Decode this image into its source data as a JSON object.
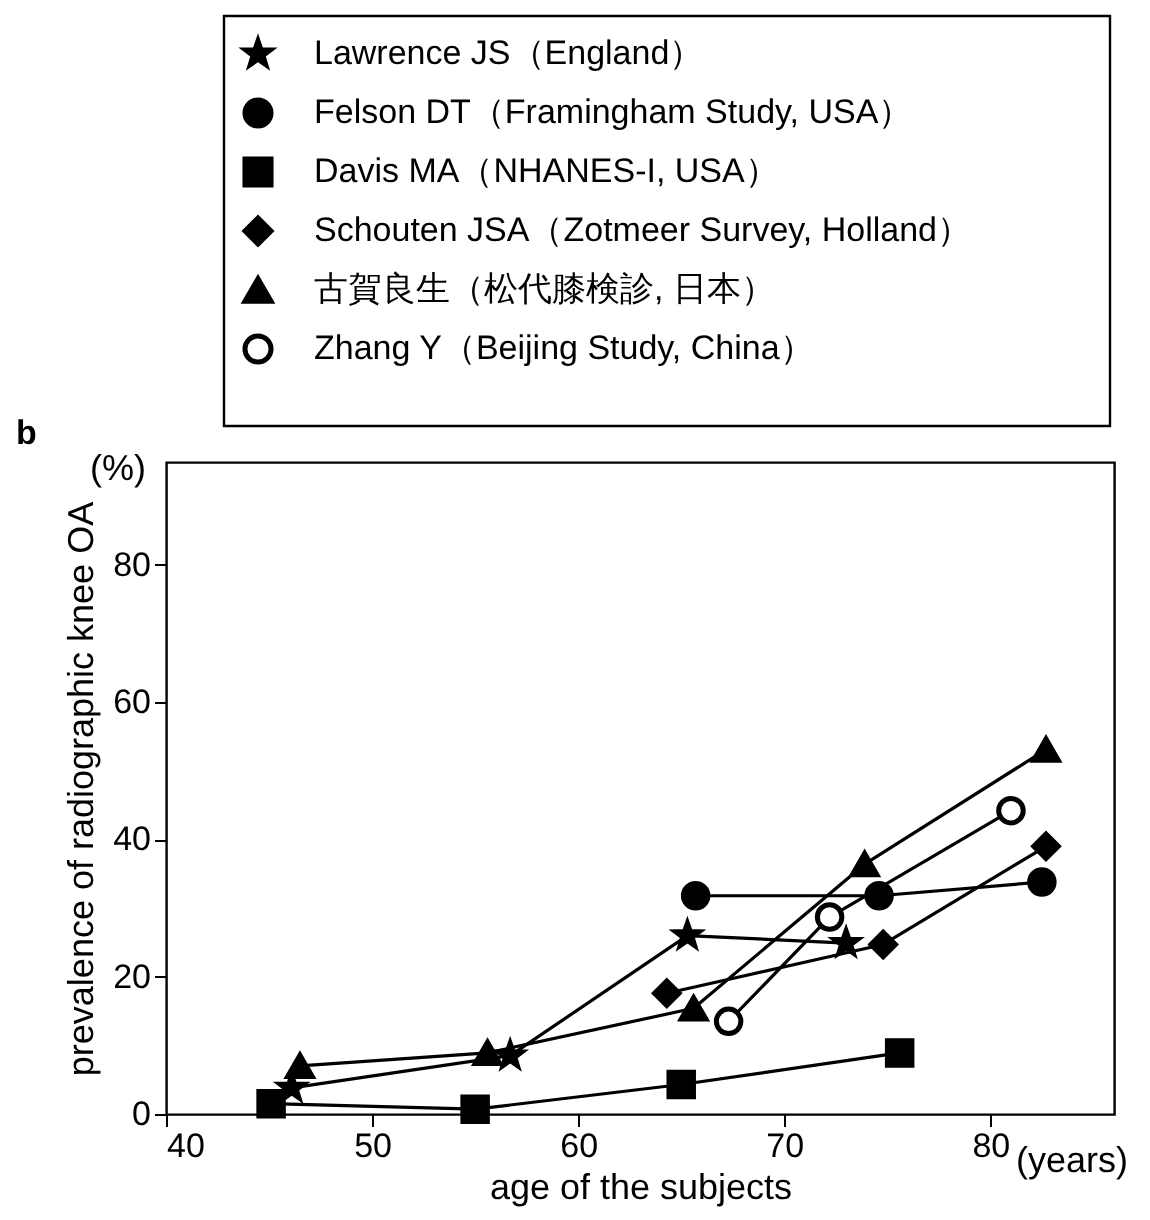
{
  "chart_data": {
    "type": "line",
    "xlabel": "age of the subjects",
    "ylabel": "prevalence of radiographic knee OA",
    "annotations": [
      "b",
      "(%)",
      "(years)"
    ],
    "xlim": [
      40,
      86
    ],
    "xticks": [
      40,
      50,
      60,
      70,
      80
    ],
    "ylim": [
      0,
      95
    ],
    "yticks": [
      0,
      20,
      40,
      60,
      80
    ],
    "grid": false,
    "legend": "top",
    "series": [
      {
        "name": "Lawrence JS（England）",
        "color": "#000000",
        "marker": "star",
        "x": [
          46.1,
          56.7,
          65.3,
          73.0
        ],
        "values": [
          3.8,
          8.5,
          26.0,
          24.9
        ]
      },
      {
        "name": "Felson DT（Framingham Study, USA）",
        "color": "#000000",
        "marker": "circle",
        "x": [
          65.7,
          74.6,
          82.5
        ],
        "values": [
          31.8,
          31.8,
          33.8
        ]
      },
      {
        "name": "Davis MA（NHANES-I, USA）",
        "color": "#000000",
        "marker": "square",
        "x": [
          45.1,
          55.0,
          65.0,
          75.6
        ],
        "values": [
          1.5,
          0.7,
          4.3,
          8.9
        ]
      },
      {
        "name": "Schouten JSA（Zotmeer Survey, Holland）",
        "color": "#000000",
        "marker": "diamond",
        "x": [
          64.3,
          74.8,
          82.7
        ],
        "values": [
          17.6,
          24.7,
          39.0
        ]
      },
      {
        "name": "古賀良生（松代膝検診, 日本）",
        "color": "#000000",
        "marker": "triangle",
        "x": [
          46.5,
          55.6,
          65.6,
          73.9,
          82.7
        ],
        "values": [
          7.0,
          8.9,
          15.4,
          36.4,
          53.1
        ]
      },
      {
        "name": "Zhang Y（Beijing Study, China）",
        "color": "#000000",
        "marker": "circle",
        "x": [
          67.3,
          72.2,
          81.0
        ],
        "values": [
          13.5,
          28.7,
          44.2
        ]
      }
    ]
  }
}
